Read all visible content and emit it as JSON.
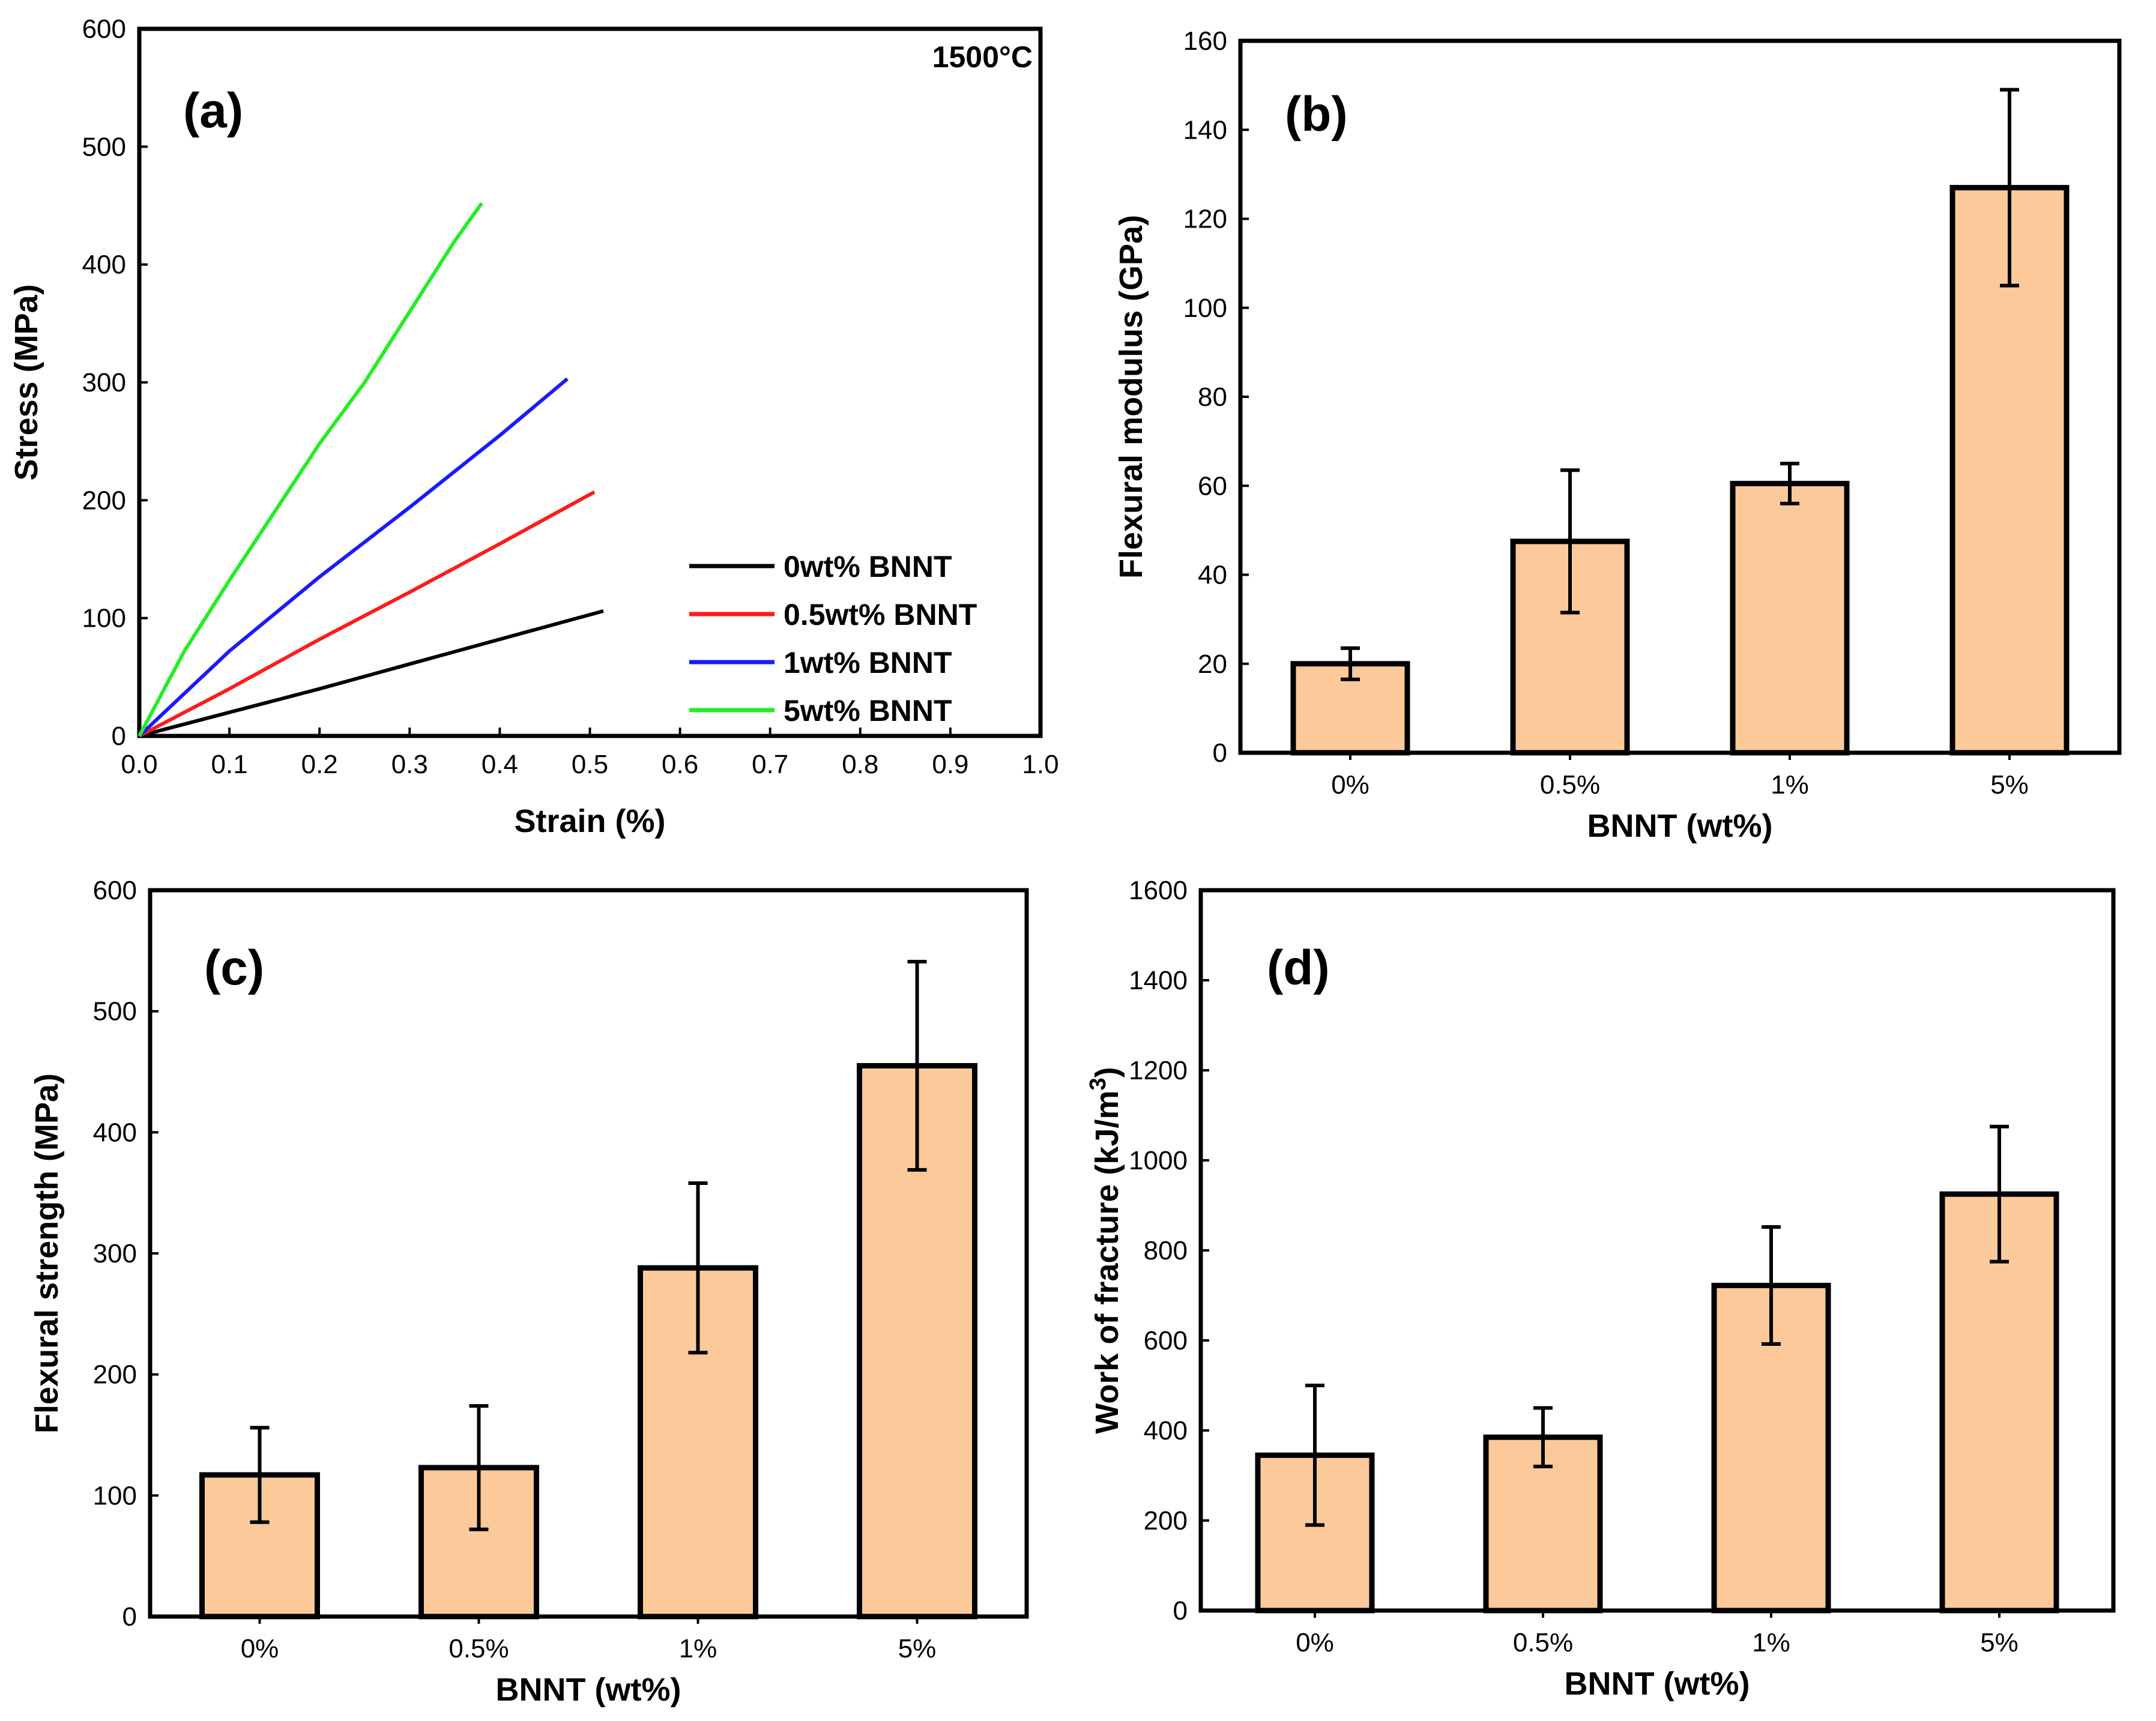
{
  "colors": {
    "bar_fill": "#fcca9a",
    "series_0wt": "#000000",
    "series_0_5wt": "#ff1a1a",
    "series_1wt": "#1a1aff",
    "series_5wt": "#22ee22"
  },
  "chart_data": [
    {
      "id": "a",
      "type": "line",
      "panel_label": "(a)",
      "annotation": "1500°C",
      "xlabel": "Strain (%)",
      "ylabel": "Stress (MPa)",
      "xlim": [
        0.0,
        1.0
      ],
      "ylim": [
        0,
        600
      ],
      "xticks": [
        "0.0",
        "0.1",
        "0.2",
        "0.3",
        "0.4",
        "0.5",
        "0.6",
        "0.7",
        "0.8",
        "0.9",
        "1.0"
      ],
      "yticks": [
        "0",
        "100",
        "200",
        "300",
        "400",
        "500",
        "600"
      ],
      "legend_position": "lower-right",
      "series": [
        {
          "name": "0wt% BNNT",
          "color": "#000000",
          "x": [
            0.0,
            0.1,
            0.2,
            0.3,
            0.4,
            0.515
          ],
          "y": [
            0,
            20,
            40,
            61,
            82,
            106
          ]
        },
        {
          "name": "0.5wt% BNNT",
          "color": "#ff1a1a",
          "x": [
            0.0,
            0.1,
            0.2,
            0.3,
            0.4,
            0.505
          ],
          "y": [
            0,
            40,
            82,
            122,
            163,
            207
          ]
        },
        {
          "name": "1wt% BNNT",
          "color": "#1a1aff",
          "x": [
            0.0,
            0.1,
            0.2,
            0.3,
            0.4,
            0.475
          ],
          "y": [
            0,
            72,
            135,
            194,
            255,
            303
          ]
        },
        {
          "name": "5wt% BNNT",
          "color": "#22ee22",
          "x": [
            0.0,
            0.05,
            0.1,
            0.15,
            0.2,
            0.25,
            0.3,
            0.35,
            0.38
          ],
          "y": [
            0,
            72,
            132,
            190,
            248,
            300,
            360,
            420,
            452
          ]
        }
      ]
    },
    {
      "id": "b",
      "type": "bar",
      "panel_label": "(b)",
      "xlabel": "BNNT (wt%)",
      "ylabel": "Flexural modulus (GPa)",
      "ylim": [
        0,
        160
      ],
      "yticks": [
        "0",
        "20",
        "40",
        "60",
        "80",
        "100",
        "120",
        "140",
        "160"
      ],
      "categories": [
        "0%",
        "0.5%",
        "1%",
        "5%"
      ],
      "values": [
        20,
        47.5,
        60.5,
        127
      ],
      "errors": [
        3.5,
        16,
        4.5,
        22
      ]
    },
    {
      "id": "c",
      "type": "bar",
      "panel_label": "(c)",
      "xlabel": "BNNT (wt%)",
      "ylabel": "Flexural strength (MPa)",
      "ylim": [
        0,
        600
      ],
      "yticks": [
        "0",
        "100",
        "200",
        "300",
        "400",
        "500",
        "600"
      ],
      "categories": [
        "0%",
        "0.5%",
        "1%",
        "5%"
      ],
      "values": [
        117,
        123,
        288,
        455
      ],
      "errors": [
        39,
        51,
        70,
        86
      ]
    },
    {
      "id": "d",
      "type": "bar",
      "panel_label": "(d)",
      "xlabel": "BNNT (wt%)",
      "ylabel": "Work of fracture (kJ/m",
      "ylabel_sup": "3",
      "ylabel_end": ")",
      "ylim": [
        0,
        1600
      ],
      "yticks": [
        "0",
        "200",
        "400",
        "600",
        "800",
        "1000",
        "1200",
        "1400",
        "1600"
      ],
      "categories": [
        "0%",
        "0.5%",
        "1%",
        "5%"
      ],
      "values": [
        345,
        385,
        722,
        925
      ],
      "errors": [
        155,
        65,
        130,
        150
      ]
    }
  ]
}
